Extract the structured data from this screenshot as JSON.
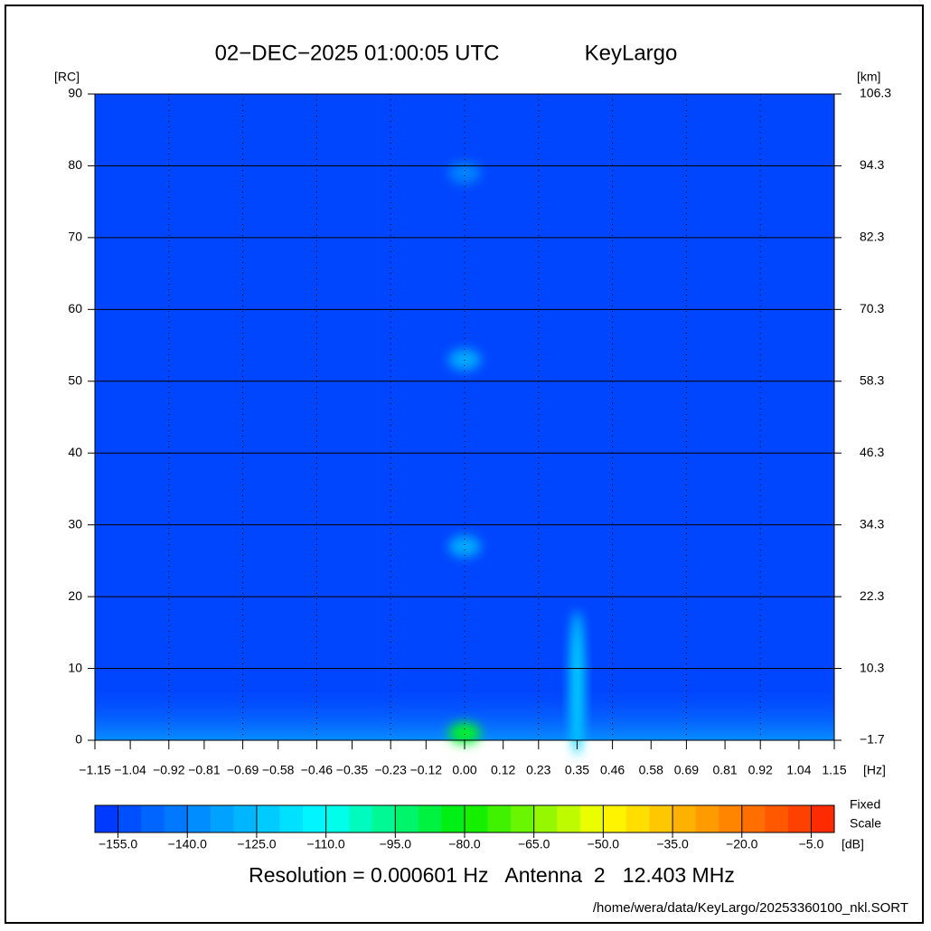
{
  "chart_data": {
    "type": "heatmap",
    "title": "02−DEC−2025 01:00:05 UTC",
    "station": "KeyLargo",
    "y_label": "[RC]",
    "y2_label": "[km]",
    "x_label": "[Hz]",
    "colorbar_label": "[dB]",
    "colorbar_note": [
      "Fixed",
      "Scale"
    ],
    "footer": "Resolution = 0.000601 Hz   Antenna  2   12.403 MHz",
    "file": "/home/wera/data/KeyLargo/20253360100_nkl.SORT",
    "xlim": [
      -1.15,
      1.15
    ],
    "xticks": [
      {
        "value": -1.15,
        "label": "−1.15"
      },
      {
        "value": -1.04,
        "label": "−1.04"
      },
      {
        "value": -0.92,
        "label": "−0.92"
      },
      {
        "value": -0.81,
        "label": "−0.81"
      },
      {
        "value": -0.69,
        "label": "−0.69"
      },
      {
        "value": -0.58,
        "label": "−0.58"
      },
      {
        "value": -0.46,
        "label": "−0.46"
      },
      {
        "value": -0.35,
        "label": "−0.35"
      },
      {
        "value": -0.23,
        "label": "−0.23"
      },
      {
        "value": -0.12,
        "label": "−0.12"
      },
      {
        "value": 0,
        "label": "0.00"
      },
      0.12,
      0.23,
      0.35,
      0.46,
      0.58,
      0.69,
      0.81,
      0.92,
      1.04,
      1.15
    ],
    "ylim": [
      0,
      90
    ],
    "yticks": [
      0,
      10,
      20,
      30,
      40,
      50,
      60,
      70,
      80,
      90
    ],
    "y2lim": [
      -1.7,
      106.3
    ],
    "y2ticks": [
      {
        "value": -1.7,
        "label": "−1.7"
      },
      10.3,
      22.3,
      34.3,
      46.3,
      58.3,
      70.3,
      82.3,
      94.3,
      106.3
    ],
    "clim": [
      -160,
      0
    ],
    "colorbar_step": 5,
    "colorscale": [
      [
        -160,
        "#0030ff"
      ],
      [
        -110,
        "#00ffff"
      ],
      [
        -80,
        "#00ee00"
      ],
      [
        -50,
        "#ffff00"
      ],
      [
        0,
        "#ff2000"
      ]
    ],
    "cticks": [
      {
        "value": -155,
        "label": "−155.0"
      },
      {
        "value": -140,
        "label": "−140.0"
      },
      {
        "value": -125,
        "label": "−125.0"
      },
      {
        "value": -110,
        "label": "−110.0"
      },
      {
        "value": -95,
        "label": "−95.0"
      },
      {
        "value": -80,
        "label": "−80.0"
      },
      {
        "value": -65,
        "label": "−65.0"
      },
      {
        "value": -50,
        "label": "−50.0"
      },
      {
        "value": -35,
        "label": "−35.0"
      },
      {
        "value": -20,
        "label": "−20.0"
      },
      {
        "value": -5,
        "label": "−5.0"
      }
    ],
    "background_value": -155,
    "echoes": {
      "x": [
        0,
        0,
        0,
        0,
        0.35
      ],
      "y": [
        79,
        53,
        27,
        1,
        8
      ],
      "values": [
        -140,
        -130,
        -130,
        -85,
        -120
      ]
    }
  }
}
